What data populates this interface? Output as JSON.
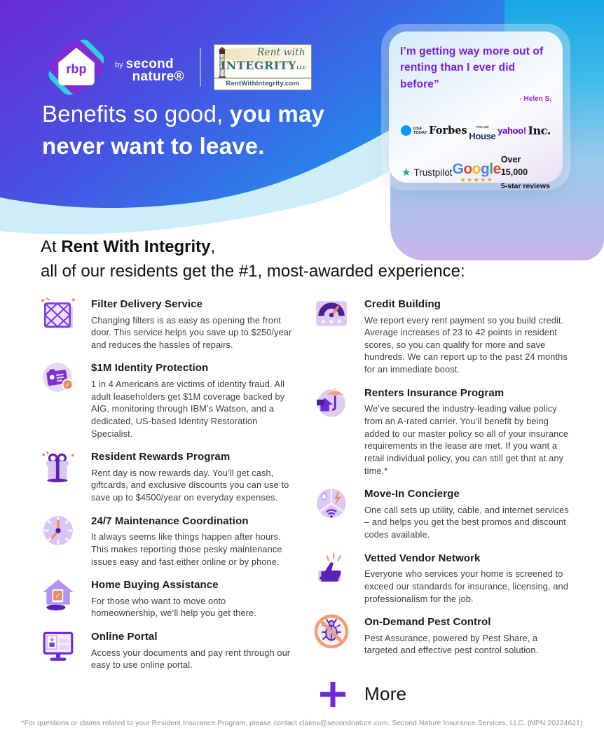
{
  "colors": {
    "gradient_purple": "#6A2BD4",
    "gradient_blue": "#2B7FEA",
    "corner_cyan": "#18A6E4",
    "corner_lavender": "#C7B5E9",
    "quote_purple": "#7B21D8",
    "accent_purple": "#6D28D9",
    "accent_orange": "#F08A5C",
    "trustpilot_green": "#00B67A",
    "google_star_gold": "#F4A52E"
  },
  "header": {
    "brand": {
      "rbp": "rbp",
      "by": "by",
      "name_line1": "second",
      "name_line2": "nature®"
    },
    "partner": {
      "script": "Rent with",
      "name": "INTEGRITY",
      "suffix": "LLC",
      "url": "RentWithIntegrity.com"
    },
    "headline": {
      "regular": "Benefits so good, ",
      "bold1": "you may",
      "bold2": "never want to leave."
    },
    "quote": {
      "line1": "I’m getting way more out of",
      "line2": "renting than I ever did before”",
      "attribution": "- Helen S."
    },
    "media": {
      "usa_line1": "USA",
      "usa_line2": "TODAY",
      "forbes": "Forbes",
      "house_top": "This Old",
      "house": "House",
      "yahoo": "yahoo!",
      "inc": "Inc."
    },
    "reviews": {
      "trustpilot_star": "★",
      "trustpilot": "Trustpilot",
      "google_letters": [
        {
          "ch": "G",
          "color": "#4285F4"
        },
        {
          "ch": "o",
          "color": "#EA4335"
        },
        {
          "ch": "o",
          "color": "#FBBC05"
        },
        {
          "ch": "g",
          "color": "#4285F4"
        },
        {
          "ch": "l",
          "color": "#34A853"
        },
        {
          "ch": "e",
          "color": "#EA4335"
        }
      ],
      "google_stars": "★★★★★",
      "count_line1": "Over 15,000",
      "count_line2": "5-star reviews"
    }
  },
  "intro": {
    "prefix": "At ",
    "brand": "Rent With Integrity",
    "comma": ",",
    "line2": "all of our residents get the #1, most-awarded experience:"
  },
  "benefits_left": [
    {
      "icon": "filter-icon",
      "title": "Filter Delivery Service",
      "desc": "Changing filters is as easy as opening the front door. This service helps you save up to $250/year and reduces the hassles of repairs."
    },
    {
      "icon": "id-card-icon",
      "title": "$1M Identity Protection",
      "desc": "1 in 4 Americans are victims of identity fraud. All adult leaseholders get $1M coverage backed by AIG, monitoring through IBM’s Watson, and a dedicated, US-based Identity Restoration Specialist."
    },
    {
      "icon": "gift-icon",
      "title": "Resident Rewards Program",
      "desc": "Rent day is now rewards day. You’ll get cash, giftcards, and exclusive discounts you can use to save up to $4500/year on everyday expenses."
    },
    {
      "icon": "clock-icon",
      "title": "24/7 Maintenance Coordination",
      "desc": "It always seems like things happen after hours. This makes reporting those pesky maintenance issues easy and fast either online or by phone."
    },
    {
      "icon": "house-icon",
      "title": "Home Buying Assistance",
      "desc": "For those who want to move onto homeownership, we’ll help you get there."
    },
    {
      "icon": "monitor-icon",
      "title": "Online Portal",
      "desc": "Access your documents and pay rent through our easy to use online portal."
    }
  ],
  "benefits_right": [
    {
      "icon": "gauge-icon",
      "title": "Credit Building",
      "desc": "We report every rent payment so you build credit. Average increases of 23 to 42 points in resident scores, so you can qualify for more and save hundreds. We can report up to the past 24 months for an immediate boost."
    },
    {
      "icon": "umbrella-house-icon",
      "title": "Renters Insurance Program",
      "desc": "We’ve secured the industry-leading value policy from an A-rated carrier. You’ll benefit by being added to our master policy so all of your insurance requirements in the lease are met. If you want a retail individual policy, you can still get that at any time.*"
    },
    {
      "icon": "utilities-icon",
      "title": "Move-In Concierge",
      "desc": "One call sets up utility, cable, and internet services – and helps you get the best promos and discount codes available."
    },
    {
      "icon": "thumbs-up-icon",
      "title": "Vetted Vendor Network",
      "desc": "Everyone who services your home is screened to exceed our standards for insurance, licensing, and professionalism for the job."
    },
    {
      "icon": "no-pest-icon",
      "title": "On-Demand Pest Control",
      "desc": "Pest Assurance, powered by Pest Share, a targeted and effective pest control solution."
    }
  ],
  "more_label": "More",
  "footnote": "*For questions or claims related to your Resident Insurance Program, please contact claims@secondnature.com. Second Nature Insurance Services, LLC. (NPN 20224621)"
}
